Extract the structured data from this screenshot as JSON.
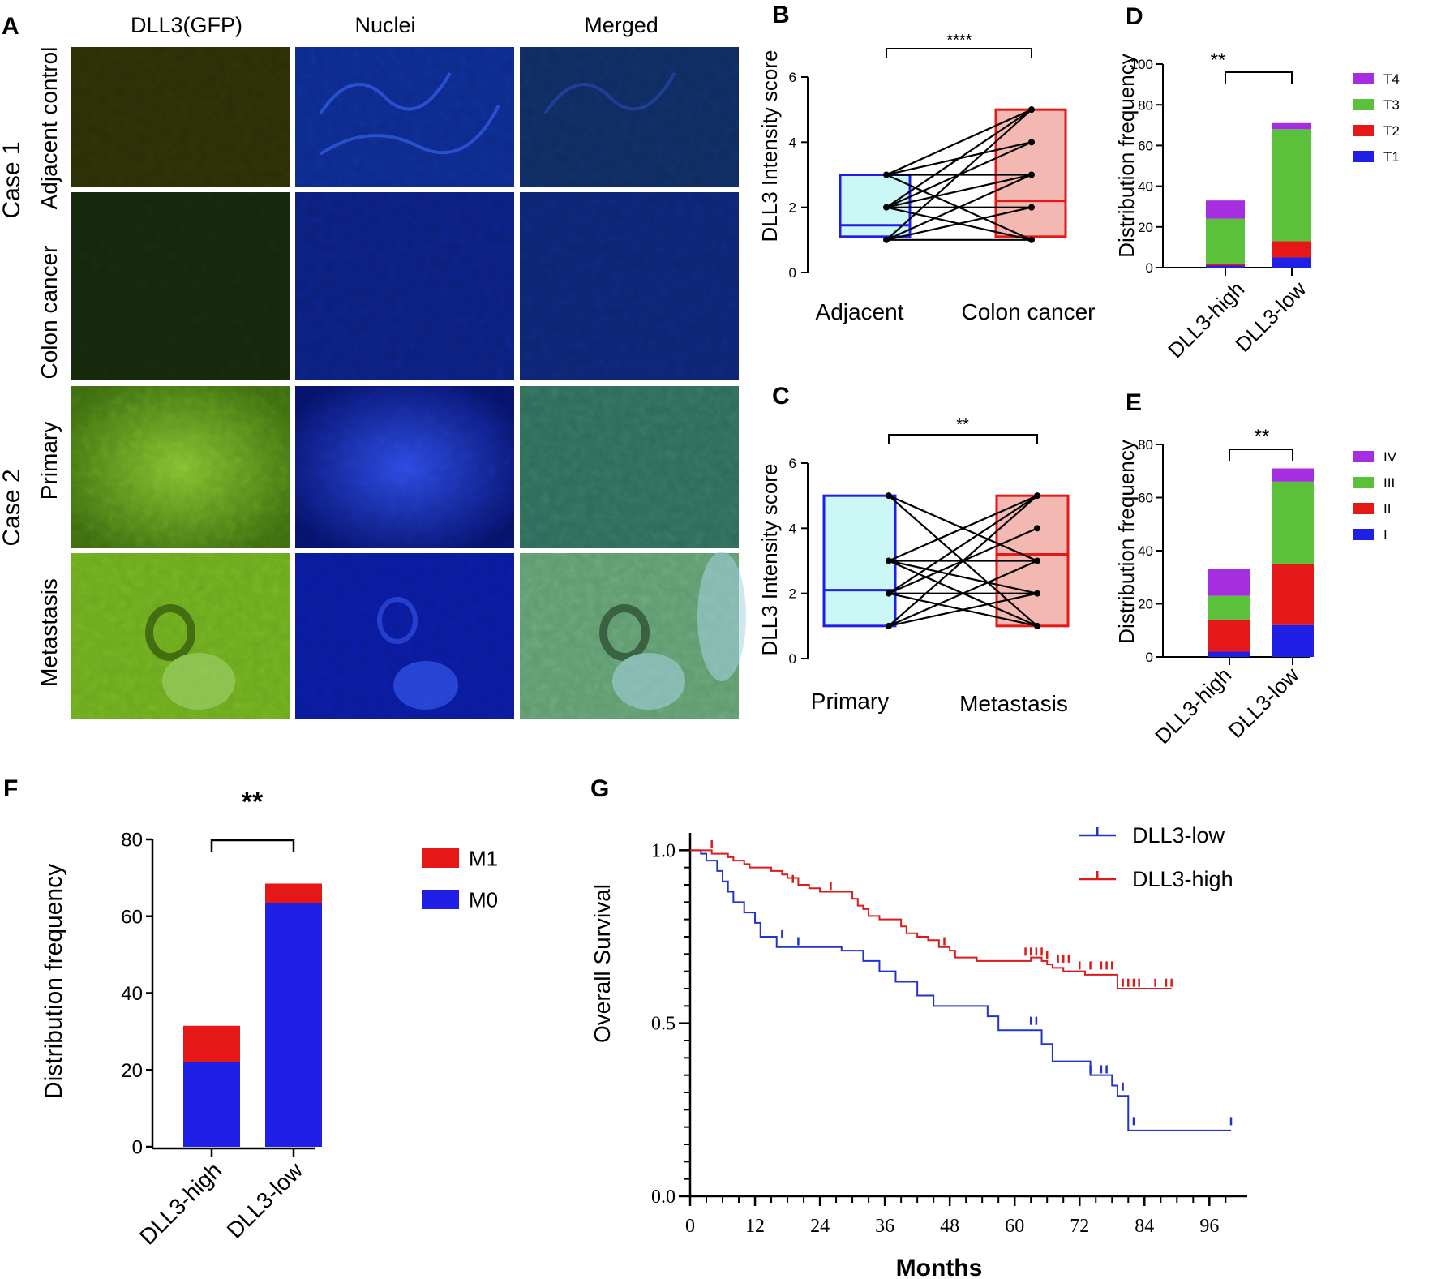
{
  "colors": {
    "blue": "#1f1fe6",
    "red": "#e51717",
    "green": "#5cc13a",
    "purple": "#a52ee0",
    "km_low": "#2233cc",
    "km_high": "#dd1a1a",
    "box_blue_fill": "#ccf7f7",
    "box_red_fill": "#f2b8b1"
  },
  "panels": {
    "A": "A",
    "B": "B",
    "C": "C",
    "D": "D",
    "E": "E",
    "F": "F",
    "G": "G"
  },
  "panelA": {
    "col_headers": [
      "DLL3(GFP)",
      "Nuclei",
      "Merged"
    ],
    "row_labels": [
      "Adjacent control",
      "Colon cancer",
      "Primary",
      "Metastasis"
    ],
    "case_labels": [
      "Case 1",
      "Case 2"
    ]
  },
  "chart_data": [
    {
      "id": "B",
      "type": "paired-box",
      "ylabel": "DLL3 Intensity score",
      "ylim": [
        0,
        6
      ],
      "yticks": [
        0,
        2,
        4,
        6
      ],
      "groups": [
        "Adjacent",
        "Colon cancer"
      ],
      "significance": "****",
      "boxes": [
        {
          "q1": 1.1,
          "median": 1.45,
          "q3": 3.0,
          "min": 1,
          "max": 3,
          "color": "blue"
        },
        {
          "q1": 1.1,
          "median": 2.2,
          "q3": 5.0,
          "min": 1,
          "max": 5,
          "color": "red"
        }
      ],
      "pairs": [
        [
          1,
          1
        ],
        [
          1,
          2
        ],
        [
          1,
          3
        ],
        [
          2,
          2
        ],
        [
          2,
          4
        ],
        [
          2,
          5
        ],
        [
          3,
          3
        ],
        [
          3,
          5
        ],
        [
          3,
          1
        ],
        [
          2,
          1
        ],
        [
          1,
          5
        ],
        [
          3,
          4
        ],
        [
          2,
          3
        ]
      ]
    },
    {
      "id": "C",
      "type": "paired-box",
      "ylabel": "DLL3 Intensity score",
      "ylim": [
        0,
        6
      ],
      "yticks": [
        0,
        2,
        4,
        6
      ],
      "groups": [
        "Primary",
        "Metastasis"
      ],
      "significance": "**",
      "boxes": [
        {
          "q1": 1.0,
          "median": 2.1,
          "q3": 5.0,
          "min": 1,
          "max": 5,
          "color": "blue"
        },
        {
          "q1": 1.0,
          "median": 3.2,
          "q3": 5.0,
          "min": 1,
          "max": 5,
          "color": "red"
        }
      ],
      "pairs": [
        [
          5,
          1
        ],
        [
          5,
          3
        ],
        [
          3,
          3
        ],
        [
          3,
          5
        ],
        [
          3,
          2
        ],
        [
          2,
          2
        ],
        [
          2,
          4
        ],
        [
          2,
          1
        ],
        [
          1,
          5
        ],
        [
          1,
          2
        ],
        [
          1,
          3
        ],
        [
          3,
          1
        ],
        [
          2,
          5
        ]
      ]
    },
    {
      "id": "D",
      "type": "bar-stacked",
      "ylabel": "Distribution frequency",
      "ylim": [
        0,
        100
      ],
      "yticks": [
        0,
        20,
        40,
        60,
        80,
        100
      ],
      "categories": [
        "DLL3-high",
        "DLL3-low"
      ],
      "significance": "**",
      "series": [
        {
          "name": "T1",
          "color": "blue",
          "values": [
            1,
            5
          ]
        },
        {
          "name": "T2",
          "color": "red",
          "values": [
            1,
            8
          ]
        },
        {
          "name": "T3",
          "color": "green",
          "values": [
            22,
            55
          ]
        },
        {
          "name": "T4",
          "color": "purple",
          "values": [
            9,
            3
          ]
        }
      ]
    },
    {
      "id": "E",
      "type": "bar-stacked",
      "ylabel": "Distribution frequency",
      "ylim": [
        0,
        80
      ],
      "yticks": [
        0,
        20,
        40,
        60,
        80
      ],
      "categories": [
        "DLL3-high",
        "DLL3-low"
      ],
      "significance": "**",
      "series": [
        {
          "name": "I",
          "color": "blue",
          "values": [
            2,
            12
          ]
        },
        {
          "name": "II",
          "color": "red",
          "values": [
            12,
            23
          ]
        },
        {
          "name": "III",
          "color": "green",
          "values": [
            9,
            31
          ]
        },
        {
          "name": "IV",
          "color": "purple",
          "values": [
            10,
            5
          ]
        }
      ]
    },
    {
      "id": "F",
      "type": "bar-stacked",
      "ylabel": "Distribution frequency",
      "ylim": [
        0,
        80
      ],
      "yticks": [
        0,
        20,
        40,
        60,
        80
      ],
      "categories": [
        "DLL3-high",
        "DLL3-low"
      ],
      "significance": "**",
      "series": [
        {
          "name": "M0",
          "color": "blue",
          "values": [
            22,
            63.5
          ]
        },
        {
          "name": "M1",
          "color": "red",
          "values": [
            9.5,
            5
          ]
        }
      ]
    },
    {
      "id": "G",
      "type": "km-survival",
      "xlabel": "Months",
      "ylabel": "Overall Survival",
      "xlim": [
        0,
        102
      ],
      "ylim": [
        0,
        1.05
      ],
      "xticks": [
        0,
        12,
        24,
        36,
        48,
        60,
        72,
        84,
        96
      ],
      "yticks": [
        "0.0",
        "0.5",
        "1.0"
      ],
      "series": [
        {
          "name": "DLL3-low",
          "color": "km_low",
          "steps": [
            [
              0,
              1.0
            ],
            [
              2,
              0.99
            ],
            [
              3,
              0.97
            ],
            [
              5,
              0.94
            ],
            [
              6,
              0.91
            ],
            [
              7,
              0.88
            ],
            [
              8,
              0.85
            ],
            [
              10,
              0.82
            ],
            [
              12,
              0.79
            ],
            [
              13,
              0.75
            ],
            [
              16,
              0.72
            ],
            [
              20,
              0.72
            ],
            [
              25,
              0.72
            ],
            [
              28,
              0.71
            ],
            [
              32,
              0.68
            ],
            [
              35,
              0.65
            ],
            [
              38,
              0.62
            ],
            [
              42,
              0.58
            ],
            [
              45,
              0.55
            ],
            [
              55,
              0.52
            ],
            [
              57,
              0.48
            ],
            [
              65,
              0.44
            ],
            [
              67,
              0.39
            ],
            [
              74,
              0.35
            ],
            [
              78,
              0.32
            ],
            [
              79,
              0.29
            ],
            [
              81,
              0.19
            ],
            [
              100,
              0.19
            ]
          ],
          "censors": [
            [
              17,
              0.75
            ],
            [
              20,
              0.73
            ],
            [
              63,
              0.5
            ],
            [
              64,
              0.5
            ],
            [
              74,
              0.36
            ],
            [
              76,
              0.36
            ],
            [
              77,
              0.36
            ],
            [
              80,
              0.31
            ],
            [
              82,
              0.21
            ],
            [
              100,
              0.21
            ]
          ]
        },
        {
          "name": "DLL3-high",
          "color": "km_high",
          "steps": [
            [
              0,
              1.0
            ],
            [
              4,
              0.99
            ],
            [
              7,
              0.98
            ],
            [
              8,
              0.97
            ],
            [
              10,
              0.96
            ],
            [
              11,
              0.95
            ],
            [
              15,
              0.94
            ],
            [
              17,
              0.93
            ],
            [
              18,
              0.92
            ],
            [
              20,
              0.9
            ],
            [
              22,
              0.89
            ],
            [
              24,
              0.88
            ],
            [
              28,
              0.88
            ],
            [
              30,
              0.86
            ],
            [
              31,
              0.84
            ],
            [
              32,
              0.83
            ],
            [
              33,
              0.81
            ],
            [
              35,
              0.8
            ],
            [
              38,
              0.8
            ],
            [
              39,
              0.78
            ],
            [
              40,
              0.76
            ],
            [
              42,
              0.75
            ],
            [
              44,
              0.74
            ],
            [
              46,
              0.72
            ],
            [
              48,
              0.71
            ],
            [
              49,
              0.69
            ],
            [
              53,
              0.68
            ],
            [
              61,
              0.68
            ],
            [
              63,
              0.69
            ],
            [
              65,
              0.68
            ],
            [
              66,
              0.67
            ],
            [
              67,
              0.66
            ],
            [
              69,
              0.65
            ],
            [
              73,
              0.64
            ],
            [
              79,
              0.6
            ],
            [
              89,
              0.6
            ]
          ],
          "censors": [
            [
              4,
              1.01
            ],
            [
              19,
              0.91
            ],
            [
              26,
              0.89
            ],
            [
              47,
              0.73
            ],
            [
              62,
              0.7
            ],
            [
              63,
              0.7
            ],
            [
              64,
              0.7
            ],
            [
              65,
              0.7
            ],
            [
              66,
              0.69
            ],
            [
              68,
              0.68
            ],
            [
              69,
              0.68
            ],
            [
              70,
              0.68
            ],
            [
              72,
              0.66
            ],
            [
              74,
              0.66
            ],
            [
              76,
              0.66
            ],
            [
              77,
              0.66
            ],
            [
              78,
              0.66
            ],
            [
              80,
              0.61
            ],
            [
              81,
              0.61
            ],
            [
              82,
              0.61
            ],
            [
              83,
              0.61
            ],
            [
              86,
              0.61
            ],
            [
              88,
              0.61
            ],
            [
              89,
              0.61
            ]
          ]
        }
      ]
    }
  ]
}
